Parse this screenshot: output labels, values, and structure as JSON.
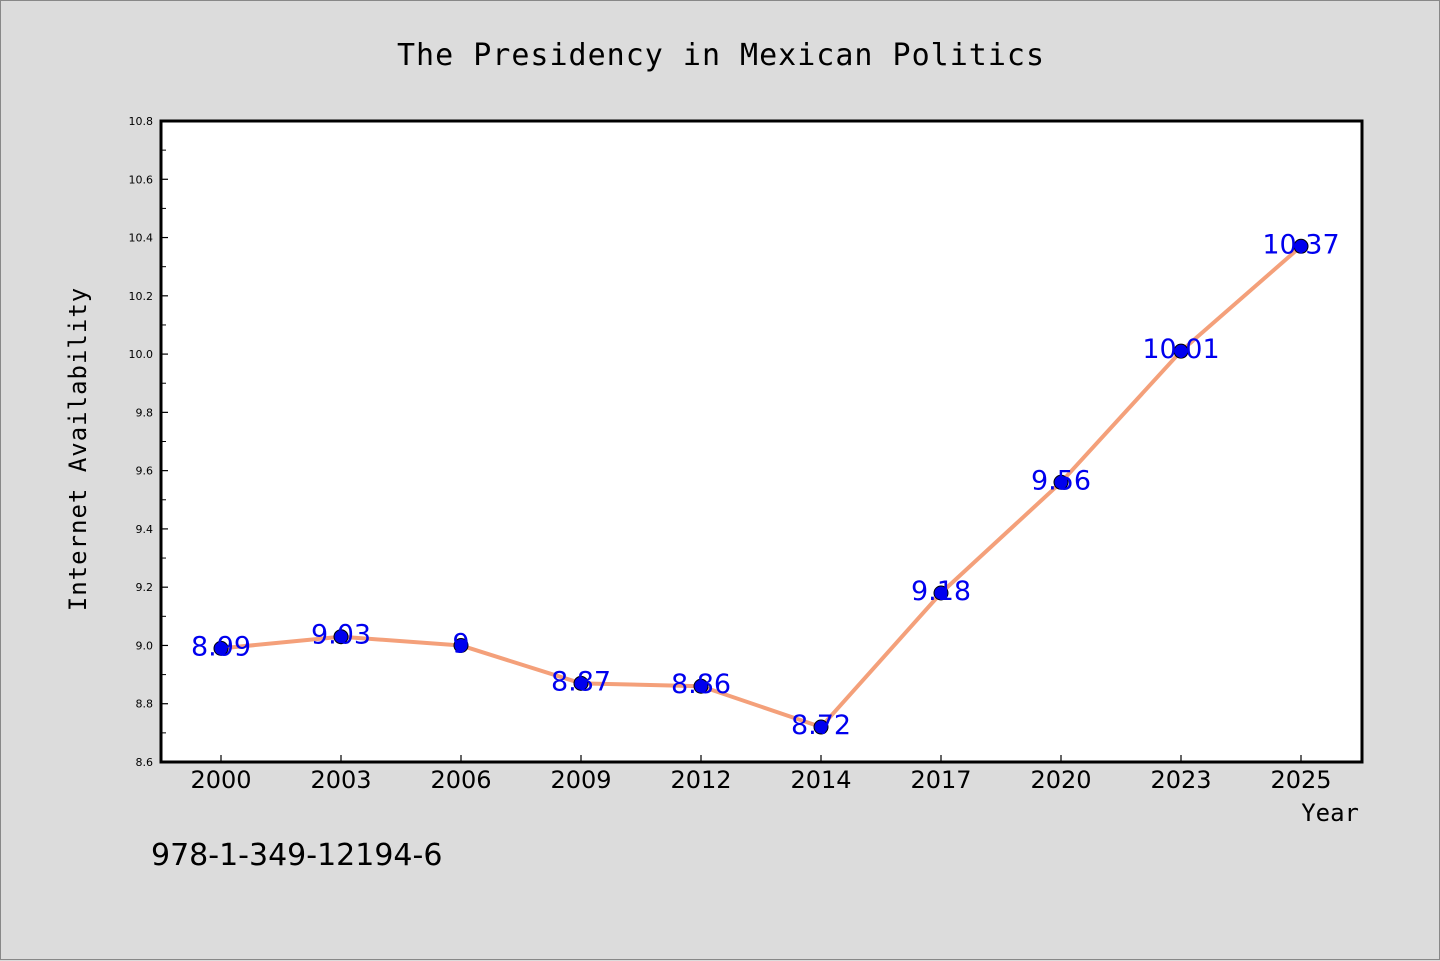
{
  "chart_data": {
    "type": "line",
    "title": "The Presidency in Mexican Politics",
    "xlabel": "Year",
    "ylabel": "Internet Availability",
    "categories": [
      "2000",
      "2003",
      "2006",
      "2009",
      "2012",
      "2014",
      "2017",
      "2020",
      "2023",
      "2025"
    ],
    "series": [
      {
        "values": [
          8.99,
          9.03,
          9,
          8.87,
          8.86,
          8.72,
          9.18,
          9.56,
          10.01,
          10.37
        ],
        "labels": [
          "8.99",
          "9.03",
          "9",
          "8.87",
          "8.86",
          "8.72",
          "9.18",
          "9.56",
          "10.01",
          "10.37"
        ],
        "line_color": "#f4a07a",
        "marker_color": "#0000ee",
        "label_color": "#0000ee"
      }
    ],
    "ylim": [
      8.6,
      10.8
    ],
    "yticks": [
      "8.6",
      "8.8",
      "9.0",
      "9.2",
      "9.4",
      "9.6",
      "9.8",
      "10.0",
      "10.2",
      "10.4",
      "10.6",
      "10.8"
    ],
    "grid": false,
    "legend": "none"
  },
  "footer": {
    "isbn": "978-1-349-12194-6"
  },
  "colors": {
    "background": "#dcdcdc",
    "plot_background": "#ffffff",
    "axis": "#000000"
  }
}
